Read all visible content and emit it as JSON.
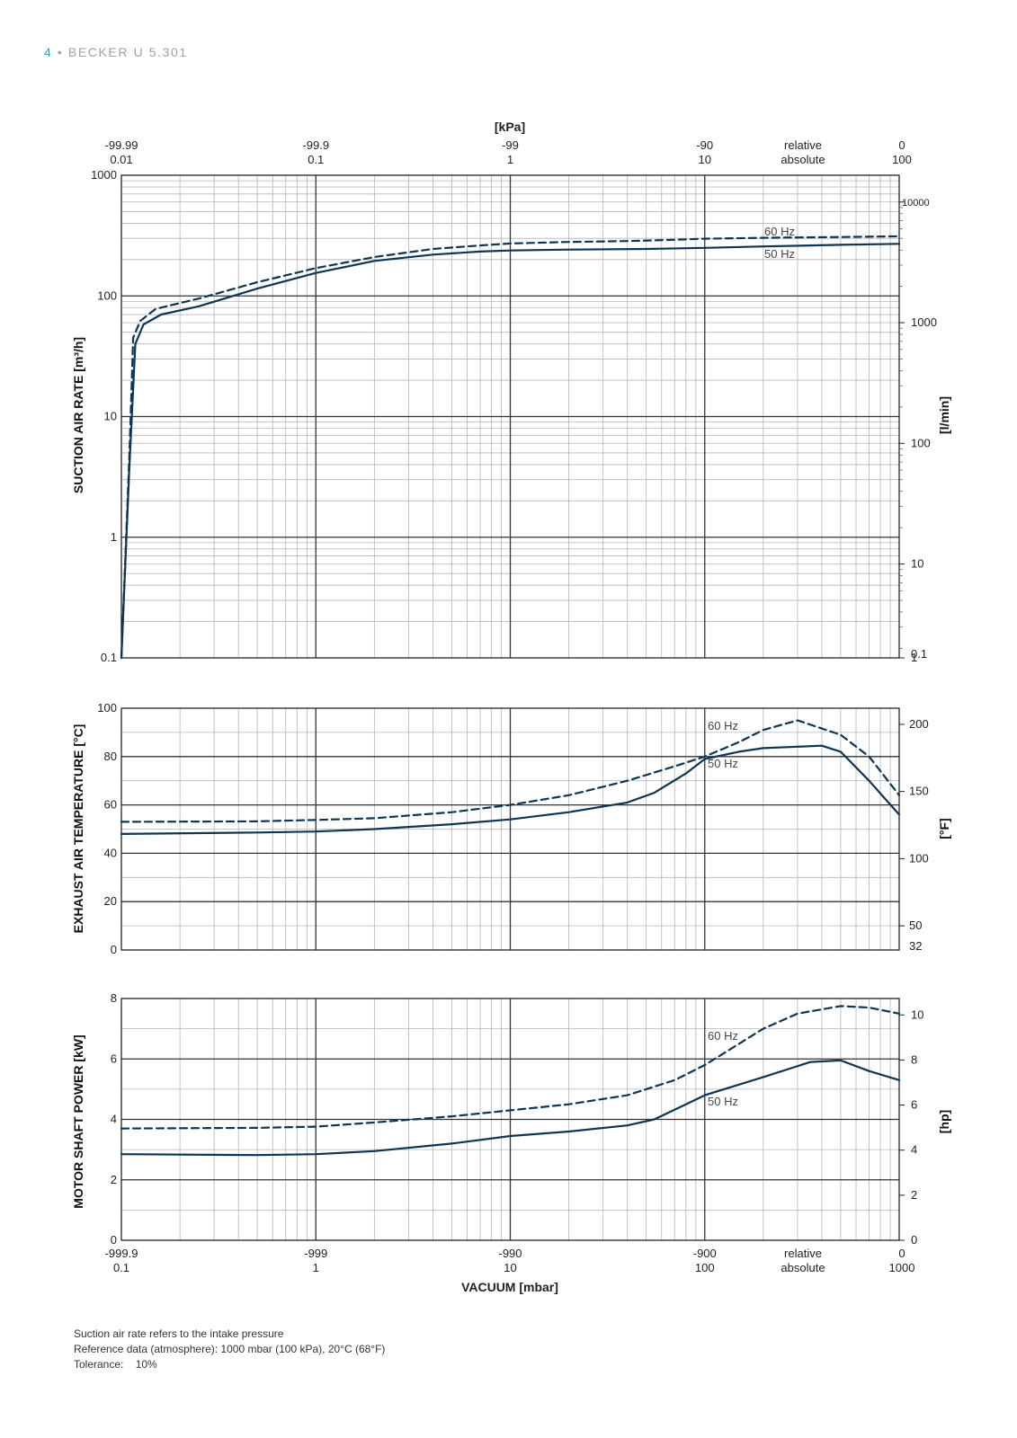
{
  "header": {
    "page_number": "4",
    "separator": "•",
    "product": "BECKER U 5.301"
  },
  "footer": {
    "lines": [
      "Suction air rate refers to the intake pressure",
      "Reference data (atmosphere): 1000 mbar (100 kPa), 20°C (68°F)",
      "Tolerance:    10%"
    ]
  },
  "colors": {
    "curve": "#0d3554",
    "grid_major": "#333333",
    "grid_minor": "#b5b5b5",
    "header_accent": "#2ea3b6"
  },
  "chart_data": [
    {
      "id": "suction",
      "type": "line",
      "x_scale": "log",
      "xlim": [
        0.1,
        1000
      ],
      "y_scale": "log",
      "ylim": [
        0.1,
        1000
      ],
      "ylabel": "SUCTION AIR RATE  [m³/h]",
      "y_ticks": [
        "1000",
        "100",
        "10",
        "1",
        "0.1"
      ],
      "y2label": "[l/min]",
      "y2_ticks": [
        "10000",
        "1000",
        "100",
        "10",
        "1",
        "0.1"
      ],
      "top_axis": {
        "title": "[kPa]",
        "relative": [
          "-99.99",
          "-99.9",
          "-99",
          "-90",
          "relative",
          "0"
        ],
        "absolute": [
          "0.01",
          "0.1",
          "1",
          "10",
          "absolute",
          "100"
        ]
      },
      "grid": true,
      "series": [
        {
          "name": "60 Hz",
          "style": "dashed",
          "points": [
            [
              0.1,
              0.1
            ],
            [
              0.11,
              5
            ],
            [
              0.115,
              45
            ],
            [
              0.125,
              62
            ],
            [
              0.15,
              78
            ],
            [
              0.25,
              95
            ],
            [
              0.5,
              130
            ],
            [
              1,
              170
            ],
            [
              2,
              210
            ],
            [
              4,
              245
            ],
            [
              7,
              262
            ],
            [
              10,
              272
            ],
            [
              20,
              280
            ],
            [
              40,
              285
            ],
            [
              70,
              292
            ],
            [
              100,
              298
            ],
            [
              200,
              303
            ],
            [
              500,
              308
            ],
            [
              1000,
              312
            ]
          ]
        },
        {
          "name": "50 Hz",
          "style": "solid",
          "points": [
            [
              0.1,
              0.1
            ],
            [
              0.11,
              4
            ],
            [
              0.118,
              40
            ],
            [
              0.13,
              58
            ],
            [
              0.16,
              70
            ],
            [
              0.25,
              82
            ],
            [
              0.5,
              115
            ],
            [
              1,
              155
            ],
            [
              2,
              195
            ],
            [
              4,
              220
            ],
            [
              7,
              233
            ],
            [
              10,
              238
            ],
            [
              20,
              242
            ],
            [
              50,
              245
            ],
            [
              100,
              250
            ],
            [
              200,
              257
            ],
            [
              500,
              265
            ],
            [
              1000,
              270
            ]
          ]
        }
      ]
    },
    {
      "id": "temperature",
      "type": "line",
      "x_scale": "log",
      "xlim": [
        0.1,
        1000
      ],
      "ylim": [
        0,
        100
      ],
      "ylabel": "EXHAUST AIR TEMPERATURE  [°C]",
      "y_ticks": [
        "100",
        "80",
        "60",
        "40",
        "20",
        "0"
      ],
      "y2label": "[°F]",
      "y2_ticks": [
        "200",
        "150",
        "100",
        "50",
        "32"
      ],
      "grid": true,
      "series": [
        {
          "name": "60 Hz",
          "style": "dashed",
          "points": [
            [
              0.1,
              53
            ],
            [
              0.5,
              53.2
            ],
            [
              1,
              53.8
            ],
            [
              2,
              54.5
            ],
            [
              5,
              57
            ],
            [
              10,
              60
            ],
            [
              20,
              64
            ],
            [
              40,
              70
            ],
            [
              70,
              76
            ],
            [
              100,
              80
            ],
            [
              150,
              86
            ],
            [
              200,
              91
            ],
            [
              300,
              95
            ],
            [
              500,
              89
            ],
            [
              700,
              80
            ],
            [
              1000,
              64
            ]
          ]
        },
        {
          "name": "50 Hz",
          "style": "solid",
          "points": [
            [
              0.1,
              48
            ],
            [
              0.5,
              48.6
            ],
            [
              1,
              49
            ],
            [
              2,
              50
            ],
            [
              5,
              52
            ],
            [
              10,
              54
            ],
            [
              20,
              57
            ],
            [
              40,
              61
            ],
            [
              55,
              65
            ],
            [
              80,
              73
            ],
            [
              100,
              79
            ],
            [
              150,
              82
            ],
            [
              200,
              83.5
            ],
            [
              400,
              84.5
            ],
            [
              500,
              82
            ],
            [
              700,
              70
            ],
            [
              1000,
              56
            ]
          ]
        }
      ]
    },
    {
      "id": "power",
      "type": "line",
      "x_scale": "log",
      "xlim": [
        0.1,
        1000
      ],
      "ylim": [
        0,
        8
      ],
      "ylabel": "MOTOR SHAFT POWER  [kW]",
      "y_ticks": [
        "8",
        "6",
        "4",
        "2",
        "0"
      ],
      "y2label": "[hp]",
      "y2_ticks": [
        "10",
        "8",
        "6",
        "4",
        "2",
        "0"
      ],
      "bottom_axis": {
        "title": "VACUUM  [mbar]",
        "relative": [
          "-999.9",
          "-999",
          "-990",
          "-900",
          "relative",
          "0"
        ],
        "absolute": [
          "0.1",
          "1",
          "10",
          "100",
          "absolute",
          "1000"
        ]
      },
      "grid": true,
      "series": [
        {
          "name": "60 Hz",
          "style": "dashed",
          "points": [
            [
              0.1,
              3.7
            ],
            [
              0.5,
              3.72
            ],
            [
              1,
              3.76
            ],
            [
              2,
              3.9
            ],
            [
              5,
              4.1
            ],
            [
              10,
              4.3
            ],
            [
              20,
              4.5
            ],
            [
              40,
              4.8
            ],
            [
              70,
              5.3
            ],
            [
              100,
              5.8
            ],
            [
              150,
              6.5
            ],
            [
              200,
              7.0
            ],
            [
              300,
              7.5
            ],
            [
              500,
              7.75
            ],
            [
              700,
              7.7
            ],
            [
              1000,
              7.5
            ]
          ]
        },
        {
          "name": "50 Hz",
          "style": "solid",
          "points": [
            [
              0.1,
              2.85
            ],
            [
              0.5,
              2.82
            ],
            [
              1,
              2.85
            ],
            [
              2,
              2.95
            ],
            [
              5,
              3.2
            ],
            [
              10,
              3.45
            ],
            [
              20,
              3.6
            ],
            [
              40,
              3.8
            ],
            [
              55,
              4.0
            ],
            [
              80,
              4.5
            ],
            [
              100,
              4.8
            ],
            [
              200,
              5.4
            ],
            [
              350,
              5.9
            ],
            [
              500,
              5.95
            ],
            [
              700,
              5.6
            ],
            [
              1000,
              5.3
            ]
          ]
        }
      ]
    }
  ]
}
